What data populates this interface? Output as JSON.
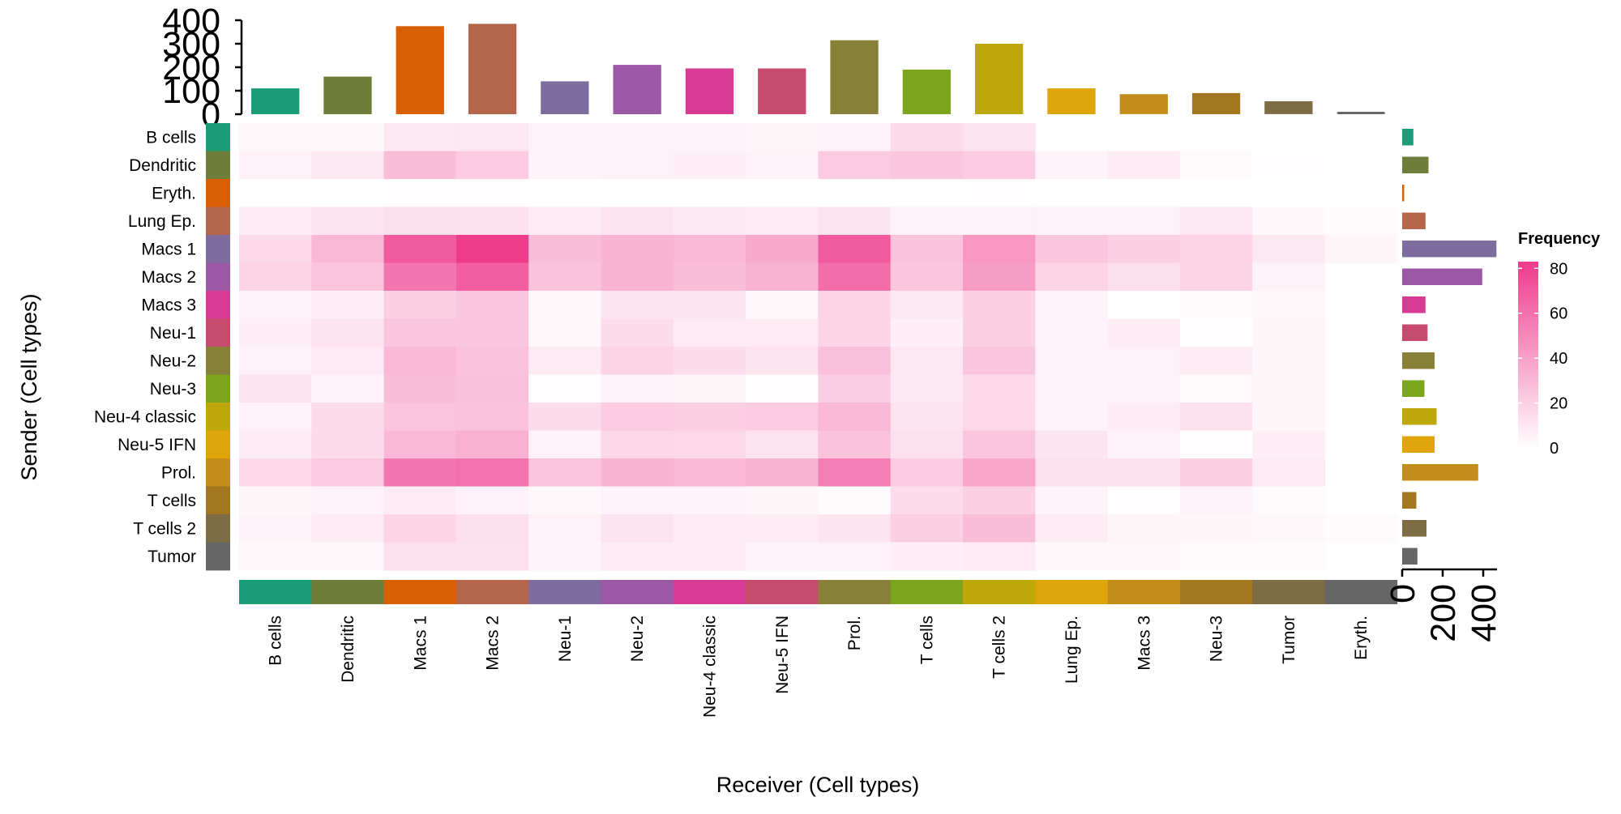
{
  "chart_data": {
    "type": "heatmap",
    "xlabel": "Receiver (Cell types)",
    "ylabel": "Sender (Cell types)",
    "legend": {
      "title": "Frequency",
      "placement": "right",
      "ticks": [
        "80",
        "60",
        "40",
        "20",
        "0"
      ],
      "range": [
        0,
        83
      ],
      "low_color": "#ffffff",
      "high_color": "#ef3b8c"
    },
    "receivers": [
      "B cells",
      "Dendritic",
      "Macs 1",
      "Macs 2",
      "Neu-1",
      "Neu-2",
      "Neu-4 classic",
      "Neu-5 IFN",
      "Prol.",
      "T cells",
      "T cells 2",
      "Lung Ep.",
      "Macs 3",
      "Neu-3",
      "Tumor",
      "Eryth."
    ],
    "senders": [
      "B cells",
      "Dendritic",
      "Eryth.",
      "Lung Ep.",
      "Macs 1",
      "Macs 2",
      "Macs 3",
      "Neu-1",
      "Neu-2",
      "Neu-3",
      "Neu-4 classic",
      "Neu-5 IFN",
      "Prol.",
      "T cells",
      "T cells 2",
      "Tumor"
    ],
    "receiver_colors": [
      "#1b9e77",
      "#6f7d3b",
      "#d95f02",
      "#b5654a",
      "#7e6c9f",
      "#9c58a6",
      "#d63a93",
      "#c64a6d",
      "#888039",
      "#7aa51c",
      "#bea70a",
      "#dfa40a",
      "#c28d1a",
      "#a2771f",
      "#7e6c45",
      "#666666"
    ],
    "sender_colors": [
      "#1b9e77",
      "#6f7d3b",
      "#d95f02",
      "#b5654a",
      "#7e6c9f",
      "#9c58a6",
      "#d63a93",
      "#c64a6d",
      "#888039",
      "#7aa51c",
      "#bea70a",
      "#dfa40a",
      "#c28d1a",
      "#a2771f",
      "#7e6c45",
      "#666666"
    ],
    "top_bar": {
      "values": [
        110,
        160,
        375,
        385,
        140,
        210,
        195,
        195,
        315,
        190,
        300,
        110,
        85,
        90,
        55,
        10
      ],
      "ylim": [
        0,
        400
      ],
      "ticks": [
        "0",
        "100",
        "200",
        "300",
        "400"
      ]
    },
    "right_bar": {
      "values": [
        55,
        130,
        10,
        115,
        465,
        395,
        115,
        125,
        160,
        110,
        170,
        160,
        375,
        70,
        120,
        75
      ],
      "xlim": [
        0,
        460
      ],
      "ticks": [
        "0",
        "200",
        "400"
      ]
    },
    "matrix": [
      [
        3,
        3,
        10,
        10,
        6,
        6,
        5,
        4,
        5,
        15,
        12,
        null,
        null,
        null,
        null,
        null
      ],
      [
        6,
        10,
        28,
        22,
        5,
        6,
        7,
        5,
        22,
        24,
        22,
        5,
        8,
        2,
        1,
        null
      ],
      [
        0,
        0,
        1,
        1,
        0,
        0,
        0,
        0,
        0,
        0,
        1,
        0,
        0,
        0,
        0,
        null
      ],
      [
        8,
        12,
        14,
        13,
        9,
        12,
        10,
        9,
        12,
        6,
        6,
        6,
        6,
        10,
        3,
        2
      ],
      [
        16,
        30,
        70,
        83,
        28,
        32,
        30,
        36,
        70,
        26,
        44,
        24,
        20,
        18,
        10,
        4
      ],
      [
        18,
        25,
        58,
        68,
        26,
        32,
        28,
        32,
        62,
        24,
        42,
        18,
        14,
        18,
        6,
        null
      ],
      [
        5,
        7,
        20,
        24,
        3,
        11,
        11,
        3,
        18,
        10,
        20,
        5,
        0,
        2,
        3,
        null
      ],
      [
        7,
        12,
        24,
        24,
        3,
        15,
        9,
        9,
        18,
        7,
        20,
        5,
        8,
        1,
        4,
        null
      ],
      [
        6,
        9,
        30,
        26,
        9,
        18,
        15,
        12,
        27,
        10,
        24,
        6,
        6,
        8,
        4,
        null
      ],
      [
        12,
        5,
        28,
        27,
        1,
        5,
        4,
        1,
        21,
        10,
        16,
        6,
        6,
        2,
        4,
        null
      ],
      [
        6,
        15,
        25,
        26,
        15,
        22,
        20,
        22,
        30,
        12,
        16,
        5,
        8,
        13,
        4,
        null
      ],
      [
        8,
        15,
        30,
        33,
        6,
        17,
        16,
        12,
        26,
        13,
        24,
        11,
        6,
        1,
        7,
        null
      ],
      [
        16,
        22,
        58,
        60,
        25,
        32,
        30,
        32,
        54,
        22,
        38,
        13,
        13,
        20,
        9,
        null
      ],
      [
        4,
        5,
        8,
        6,
        3,
        5,
        5,
        4,
        2,
        15,
        20,
        5,
        1,
        5,
        2,
        null
      ],
      [
        5,
        8,
        18,
        14,
        6,
        12,
        8,
        8,
        11,
        20,
        28,
        8,
        4,
        4,
        3,
        2
      ],
      [
        3,
        3,
        13,
        13,
        5,
        9,
        9,
        5,
        6,
        7,
        9,
        3,
        3,
        2,
        2,
        null
      ]
    ]
  }
}
